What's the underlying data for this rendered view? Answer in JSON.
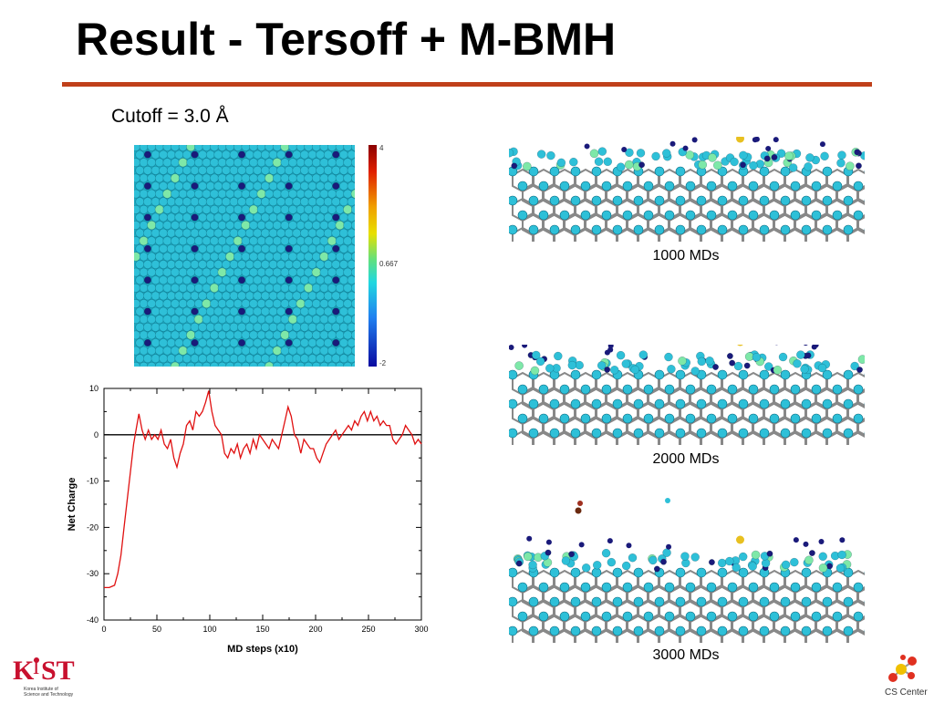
{
  "slide": {
    "title": "Result - Tersoff + M-BMH",
    "subtitle": "Cutoff = 3.0 Å"
  },
  "colorbar": {
    "max_label": "4",
    "mid_label": "0.667",
    "min_label": "-2"
  },
  "snapshots": [
    {
      "label": "1000 MDs"
    },
    {
      "label": "2000 MDs"
    },
    {
      "label": "3000 MDs"
    }
  ],
  "logos": {
    "left_text": "KIST",
    "left_sub1": "Korea Institute of",
    "left_sub2": "Science and Technology",
    "right_text": "CS Center"
  },
  "colors": {
    "accent_rule": "#c0401a",
    "atom_cyan": "#2ec0d8",
    "atom_navy": "#1a1a7a",
    "atom_green": "#7ee8a8",
    "plot_line": "#e01010"
  },
  "chart_data": {
    "type": "line",
    "title": "",
    "xlabel": "MD steps (x10)",
    "ylabel": "Net Charge",
    "xlim": [
      0,
      300
    ],
    "ylim": [
      -40,
      10
    ],
    "xticks": [
      "0",
      "50",
      "100",
      "150",
      "200",
      "250",
      "300"
    ],
    "yticks": [
      "10",
      "0",
      "-10",
      "-20",
      "-30",
      "-40"
    ],
    "reference_line": 0,
    "grid": false,
    "series": [
      {
        "color": "#e01010",
        "x": [
          0,
          5,
          10,
          13,
          16,
          19,
          22,
          25,
          28,
          31,
          33,
          36,
          39,
          42,
          45,
          48,
          51,
          54,
          57,
          60,
          63,
          66,
          69,
          72,
          75,
          78,
          81,
          84,
          87,
          90,
          93,
          96,
          99,
          102,
          105,
          108,
          111,
          114,
          117,
          120,
          123,
          126,
          129,
          132,
          135,
          138,
          141,
          144,
          147,
          150,
          153,
          156,
          159,
          162,
          165,
          168,
          171,
          174,
          177,
          180,
          183,
          186,
          189,
          192,
          195,
          198,
          201,
          204,
          207,
          210,
          213,
          216,
          219,
          222,
          225,
          228,
          231,
          234,
          237,
          240,
          243,
          246,
          249,
          252,
          255,
          258,
          261,
          264,
          267,
          270,
          273,
          276,
          279,
          282,
          285,
          288,
          291,
          294,
          297,
          300
        ],
        "y": [
          -33,
          -33,
          -32.5,
          -30,
          -26,
          -20,
          -14,
          -8,
          -2,
          2,
          4.5,
          1,
          -1,
          1,
          -1,
          0,
          -1,
          1,
          -2,
          -3,
          -1,
          -5,
          -7,
          -4,
          -2,
          2,
          3,
          1,
          5,
          4,
          5,
          7,
          9.5,
          5,
          2,
          1,
          0,
          -4,
          -5,
          -3,
          -4,
          -2,
          -5,
          -3,
          -2,
          -4,
          -1,
          -3,
          0,
          -1,
          -2,
          -3,
          -1,
          -2,
          -3,
          0,
          3,
          6,
          4,
          0,
          -1,
          -4,
          -1,
          -2,
          -3,
          -3,
          -5,
          -6,
          -4,
          -2,
          -1,
          0,
          1,
          -1,
          0,
          1,
          2,
          1,
          3,
          2,
          4,
          5,
          3,
          5,
          3,
          4,
          2,
          3,
          2,
          2,
          -1,
          -2,
          -1,
          0,
          2,
          1,
          0,
          -2,
          -1,
          -2
        ]
      }
    ]
  }
}
